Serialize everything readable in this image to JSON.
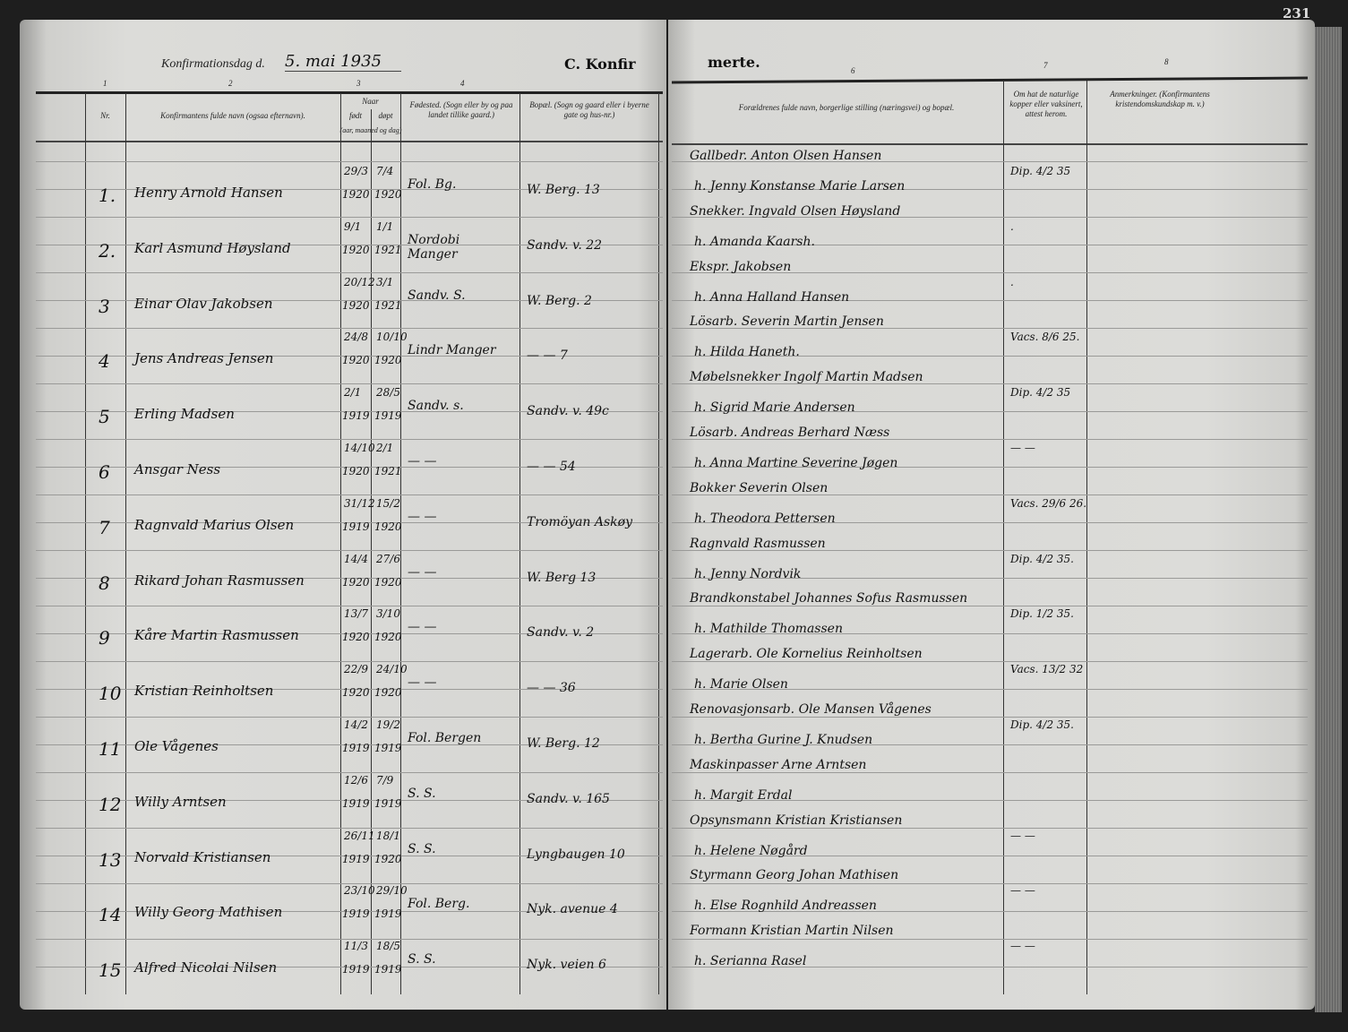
{
  "page_number": "231",
  "left_header": {
    "date_label": "Konfirmationsdag d.",
    "date_value": "5. mai 1935",
    "section_title": "C. Konfir",
    "col_numbers": [
      "1",
      "2",
      "3",
      "4"
    ]
  },
  "right_header": {
    "section_title": "merte.",
    "col_numbers": [
      "6",
      "7",
      "8"
    ]
  },
  "columns": {
    "nr": "Nr.",
    "name": "Konfirmantens fulde navn (ogsaa efternavn).",
    "naar": "Naar",
    "fodt": "født",
    "dopt": "døpt",
    "date_note": "(aar, maaned og dag)",
    "birthplace": "Fødested. (Sogn eller by og paa landet tillike gaard.)",
    "residence": "Bopæl. (Sogn og gaard eller i byerne gate og hus-nr.)",
    "parents": "Forældrenes fulde navn, borgerlige stilling (næringsvei) og bopæl.",
    "vaccination": "Om hat de naturlige kopper eller vaksinert, attest herom.",
    "remarks": "Anmerkninger. (Konfirmantens kristendomskundskap m. v.)"
  },
  "entries": [
    {
      "nr": "1.",
      "name": "Henry Arnold Hansen",
      "born_dm": "29/3",
      "born_y": "1920",
      "bapt_dm": "7/4",
      "bapt_y": "1920",
      "birthplace": "Fol. Bg.",
      "residence": "W. Berg. 13",
      "father": "Gallbedr. Anton Olsen Hansen",
      "mother": "h. Jenny Konstanse Marie Larsen",
      "vacc": "Dip. 4/2 35"
    },
    {
      "nr": "2.",
      "name": "Karl Asmund Høysland",
      "born_dm": "9/1",
      "born_y": "1920",
      "bapt_dm": "1/1",
      "bapt_y": "1921",
      "birthplace": "Nordobi Manger",
      "residence": "Sandv. v. 22",
      "father": "Snekker. Ingvald Olsen Høysland",
      "mother": "h. Amanda Kaarsh.",
      "vacc": "."
    },
    {
      "nr": "3",
      "name": "Einar Olav Jakobsen",
      "born_dm": "20/12",
      "born_y": "1920",
      "bapt_dm": "3/1",
      "bapt_y": "1921",
      "birthplace": "Sandv. S.",
      "residence": "W. Berg. 2",
      "father": "Ekspr. Jakobsen",
      "mother": "h. Anna Halland Hansen",
      "vacc": "."
    },
    {
      "nr": "4",
      "name": "Jens Andreas Jensen",
      "born_dm": "24/8",
      "born_y": "1920",
      "bapt_dm": "10/10",
      "bapt_y": "1920",
      "birthplace": "Lindr Manger",
      "residence": "— — 7",
      "father": "Lösarb. Severin Martin Jensen",
      "mother": "h. Hilda Haneth.",
      "vacc": "Vacs. 8/6 25."
    },
    {
      "nr": "5",
      "name": "Erling Madsen",
      "born_dm": "2/1",
      "born_y": "1919",
      "bapt_dm": "28/5",
      "bapt_y": "1919",
      "birthplace": "Sandv. s.",
      "residence": "Sandv. v. 49c",
      "father": "Møbelsnekker Ingolf Martin Madsen",
      "mother": "h. Sigrid Marie Andersen",
      "vacc": "Dip. 4/2 35"
    },
    {
      "nr": "6",
      "name": "Ansgar Ness",
      "born_dm": "14/10",
      "born_y": "1920",
      "bapt_dm": "2/1",
      "bapt_y": "1921",
      "birthplace": "— —",
      "residence": "— — 54",
      "father": "Lösarb. Andreas Berhard Næss",
      "mother": "h. Anna Martine Severine Jøgen",
      "vacc": "— —"
    },
    {
      "nr": "7",
      "name": "Ragnvald Marius Olsen",
      "born_dm": "31/12",
      "born_y": "1919",
      "bapt_dm": "15/2",
      "bapt_y": "1920",
      "birthplace": "— —",
      "residence": "Tromöyan Askøy",
      "father": "Bokker Severin Olsen",
      "mother": "h. Theodora Pettersen",
      "vacc": "Vacs. 29/6 26."
    },
    {
      "nr": "8",
      "name": "Rikard Johan Rasmussen",
      "born_dm": "14/4",
      "born_y": "1920",
      "bapt_dm": "27/6",
      "bapt_y": "1920",
      "birthplace": "— —",
      "residence": "W. Berg 13",
      "father": "Ragnvald Rasmussen",
      "mother": "h. Jenny Nordvik",
      "vacc": "Dip. 4/2 35."
    },
    {
      "nr": "9",
      "name": "Kåre Martin Rasmussen",
      "born_dm": "13/7",
      "born_y": "1920",
      "bapt_dm": "3/10",
      "bapt_y": "1920",
      "birthplace": "— —",
      "residence": "Sandv. v. 2",
      "father": "Brandkonstabel Johannes Sofus Rasmussen",
      "mother": "h. Mathilde Thomassen",
      "vacc": "Dip. 1/2 35."
    },
    {
      "nr": "10",
      "name": "Kristian Reinholtsen",
      "born_dm": "22/9",
      "born_y": "1920",
      "bapt_dm": "24/10",
      "bapt_y": "1920",
      "birthplace": "— —",
      "residence": "— — 36",
      "father": "Lagerarb. Ole Kornelius Reinholtsen",
      "mother": "h. Marie Olsen",
      "vacc": "Vacs. 13/2 32"
    },
    {
      "nr": "11",
      "name": "Ole Vågenes",
      "born_dm": "14/2",
      "born_y": "1919",
      "bapt_dm": "19/2",
      "bapt_y": "1919",
      "birthplace": "Fol. Bergen",
      "residence": "W. Berg. 12",
      "father": "Renovasjonsarb. Ole Mansen Vågenes",
      "mother": "h. Bertha Gurine J. Knudsen",
      "vacc": "Dip. 4/2 35."
    },
    {
      "nr": "12",
      "name": "Willy Arntsen",
      "born_dm": "12/6",
      "born_y": "1919",
      "bapt_dm": "7/9",
      "bapt_y": "1919",
      "birthplace": "S. S.",
      "residence": "Sandv. v. 165",
      "father": "Maskinpasser Arne Arntsen",
      "mother": "h. Margit Erdal",
      "vacc": ""
    },
    {
      "nr": "13",
      "name": "Norvald Kristiansen",
      "born_dm": "26/11",
      "born_y": "1919",
      "bapt_dm": "18/1",
      "bapt_y": "1920",
      "birthplace": "S. S.",
      "residence": "Lyngbaugen 10",
      "father": "Opsynsmann Kristian Kristiansen",
      "mother": "h. Helene Nøgård",
      "vacc": "— —"
    },
    {
      "nr": "14",
      "name": "Willy Georg Mathisen",
      "born_dm": "23/10",
      "born_y": "1919",
      "bapt_dm": "29/10",
      "bapt_y": "1919",
      "birthplace": "Fol. Berg.",
      "residence": "Nyk. avenue 4",
      "father": "Styrmann Georg Johan Mathisen",
      "mother": "h. Else Rognhild Andreassen",
      "vacc": "— —"
    },
    {
      "nr": "15",
      "name": "Alfred Nicolai Nilsen",
      "born_dm": "11/3",
      "born_y": "1919",
      "bapt_dm": "18/5",
      "bapt_y": "1919",
      "birthplace": "S. S.",
      "residence": "Nyk. veien 6",
      "father": "Formann Kristian Martin Nilsen",
      "mother": "h. Serianna Rasel",
      "vacc": "— —"
    }
  ]
}
